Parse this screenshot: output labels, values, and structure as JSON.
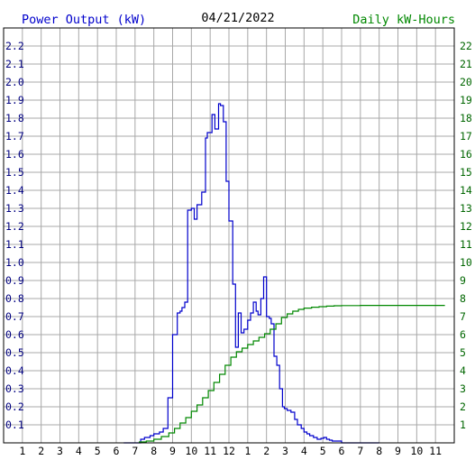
{
  "chart_data": {
    "type": "line",
    "title": "04/21/2022",
    "ylabel": "Power Output (kW)",
    "y2label": "Daily kW-Hours",
    "ylim": [
      0,
      2.3
    ],
    "y2lim": [
      0,
      23
    ],
    "xlim": [
      0,
      24
    ],
    "yticks": [
      "0.1",
      "0.2",
      "0.3",
      "0.4",
      "0.5",
      "0.6",
      "0.7",
      "0.8",
      "0.9",
      "1.0",
      "1.1",
      "1.2",
      "1.3",
      "1.4",
      "1.5",
      "1.6",
      "1.7",
      "1.8",
      "1.9",
      "2.0",
      "2.1",
      "2.2"
    ],
    "y2ticks": [
      "1",
      "2",
      "3",
      "4",
      "5",
      "6",
      "7",
      "8",
      "9",
      "10",
      "11",
      "12",
      "13",
      "14",
      "15",
      "16",
      "17",
      "18",
      "19",
      "20",
      "21",
      "22"
    ],
    "xticks": [
      "1",
      "2",
      "3",
      "4",
      "5",
      "6",
      "7",
      "8",
      "9",
      "10",
      "11",
      "12",
      "1",
      "2",
      "3",
      "4",
      "5",
      "6",
      "7",
      "8",
      "9",
      "10",
      "11"
    ],
    "grid": true,
    "colors": {
      "power": "#0000cc",
      "energy": "#008800",
      "grid": "#a8a8a8",
      "frame": "#000000"
    },
    "series": [
      {
        "name": "Power Output (kW)",
        "axis": "left",
        "color": "#0000cc",
        "step": true,
        "x": [
          6.4,
          7.3,
          7.5,
          7.8,
          8.0,
          8.3,
          8.5,
          8.75,
          9.0,
          9.25,
          9.4,
          9.5,
          9.65,
          9.8,
          10.0,
          10.15,
          10.3,
          10.55,
          10.75,
          10.85,
          11.1,
          11.25,
          11.45,
          11.55,
          11.7,
          11.85,
          12.0,
          12.2,
          12.35,
          12.5,
          12.65,
          12.8,
          13.0,
          13.15,
          13.3,
          13.45,
          13.55,
          13.7,
          13.85,
          14.0,
          14.15,
          14.25,
          14.4,
          14.55,
          14.7,
          14.85,
          14.95,
          15.1,
          15.3,
          15.5,
          15.65,
          15.85,
          16.0,
          16.15,
          16.3,
          16.5,
          16.7,
          16.9,
          17.05,
          17.2,
          17.35,
          17.5,
          17.65,
          17.8,
          18.0,
          18.2,
          18.45,
          18.75,
          19.0,
          19.2,
          19.4,
          19.6,
          19.8,
          20.0
        ],
        "y": [
          0.0,
          0.02,
          0.03,
          0.04,
          0.05,
          0.06,
          0.08,
          0.25,
          0.6,
          0.72,
          0.73,
          0.75,
          0.78,
          1.29,
          1.3,
          1.24,
          1.32,
          1.39,
          1.69,
          1.72,
          1.82,
          1.74,
          1.88,
          1.87,
          1.78,
          1.45,
          1.23,
          0.88,
          0.53,
          0.72,
          0.61,
          0.63,
          0.68,
          0.72,
          0.78,
          0.73,
          0.71,
          0.8,
          0.92,
          0.7,
          0.69,
          0.66,
          0.48,
          0.43,
          0.3,
          0.2,
          0.19,
          0.18,
          0.17,
          0.13,
          0.1,
          0.08,
          0.06,
          0.05,
          0.04,
          0.03,
          0.02,
          0.025,
          0.03,
          0.02,
          0.015,
          0.01,
          0.01,
          0.01,
          0.0,
          0.0,
          0.0,
          0.0,
          0.0,
          0.0,
          0.0,
          0.0,
          0.0,
          0.0
        ]
      },
      {
        "name": "Daily kW-Hours",
        "axis": "right",
        "color": "#008800",
        "step": true,
        "x": [
          7.2,
          7.6,
          8.0,
          8.4,
          8.8,
          9.1,
          9.4,
          9.7,
          10.0,
          10.3,
          10.6,
          10.9,
          11.2,
          11.5,
          11.8,
          12.1,
          12.4,
          12.7,
          13.0,
          13.3,
          13.6,
          13.9,
          14.2,
          14.5,
          14.8,
          15.1,
          15.4,
          15.7,
          16.0,
          16.4,
          16.8,
          17.2,
          17.6,
          18.0,
          19.0,
          20.0,
          21.0,
          22.0,
          23.5
        ],
        "y": [
          0.05,
          0.1,
          0.2,
          0.35,
          0.55,
          0.8,
          1.1,
          1.4,
          1.75,
          2.1,
          2.5,
          2.9,
          3.35,
          3.8,
          4.3,
          4.75,
          5.05,
          5.25,
          5.45,
          5.65,
          5.85,
          6.05,
          6.3,
          6.6,
          6.95,
          7.15,
          7.3,
          7.4,
          7.47,
          7.52,
          7.55,
          7.58,
          7.6,
          7.61,
          7.62,
          7.62,
          7.62,
          7.62,
          7.62
        ]
      }
    ]
  }
}
